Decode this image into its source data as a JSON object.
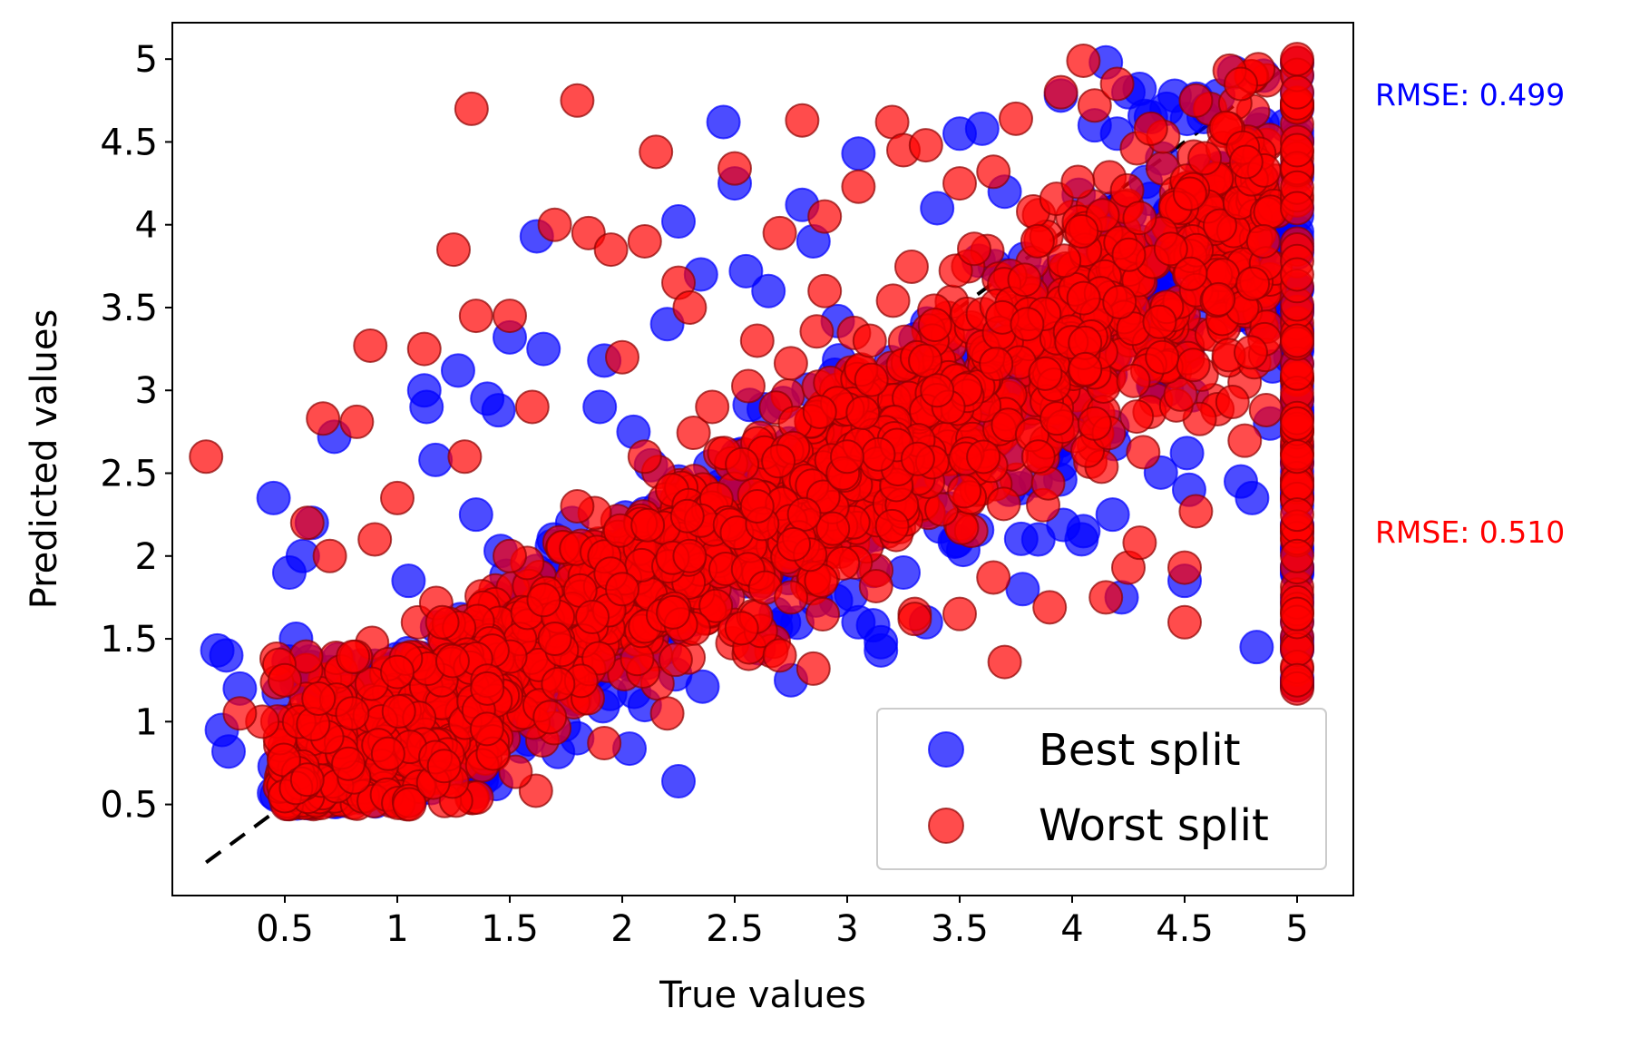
{
  "chart_data": {
    "type": "scatter",
    "xlabel": "True values",
    "ylabel": "Predicted values",
    "xlim": [
      0.0,
      5.25
    ],
    "ylim": [
      -0.05,
      5.22
    ],
    "xticks": [
      "0.5",
      "1",
      "1.5",
      "2",
      "2.5",
      "3",
      "3.5",
      "4",
      "4.5",
      "5"
    ],
    "yticks": [
      "0.5",
      "1",
      "1.5",
      "2",
      "2.5",
      "3",
      "3.5",
      "4",
      "4.5",
      "5"
    ],
    "grid": false,
    "legend_position": "lower right",
    "reference_line": {
      "style": "dashed",
      "color": "#000000",
      "x": [
        0.15,
        5.0
      ],
      "y": [
        0.15,
        5.0
      ]
    },
    "annotations": [
      {
        "text": "RMSE: 0.499",
        "color": "#0000ff"
      },
      {
        "text": "RMSE: 0.510",
        "color": "#ff0000"
      }
    ],
    "series": [
      {
        "name": "Best split",
        "color": "#0000ff",
        "points": [
          [
            0.2,
            1.43
          ],
          [
            0.24,
            1.4
          ],
          [
            0.22,
            0.95
          ],
          [
            0.25,
            0.82
          ],
          [
            0.3,
            1.2
          ],
          [
            0.45,
            2.35
          ],
          [
            0.52,
            1.9
          ],
          [
            0.58,
            2.0
          ],
          [
            0.62,
            2.2
          ],
          [
            0.72,
            2.72
          ],
          [
            0.55,
            1.5
          ],
          [
            0.6,
            1.3
          ],
          [
            1.12,
            3.0
          ],
          [
            1.13,
            2.9
          ],
          [
            1.17,
            2.58
          ],
          [
            1.27,
            3.12
          ],
          [
            1.4,
            2.95
          ],
          [
            1.45,
            2.88
          ],
          [
            1.5,
            3.32
          ],
          [
            1.62,
            3.93
          ],
          [
            1.65,
            3.25
          ],
          [
            1.92,
            3.18
          ],
          [
            2.05,
            2.75
          ],
          [
            2.25,
            4.02
          ],
          [
            2.35,
            3.7
          ],
          [
            2.45,
            4.62
          ],
          [
            2.5,
            4.25
          ],
          [
            2.55,
            3.72
          ],
          [
            2.8,
            4.12
          ],
          [
            2.75,
            1.25
          ],
          [
            2.95,
            1.73
          ],
          [
            3.05,
            1.6
          ],
          [
            3.05,
            4.43
          ],
          [
            3.15,
            1.43
          ],
          [
            3.15,
            1.48
          ],
          [
            3.25,
            1.9
          ],
          [
            3.35,
            1.6
          ],
          [
            3.5,
            4.55
          ],
          [
            3.6,
            4.58
          ],
          [
            3.72,
            2.4
          ],
          [
            3.78,
            1.8
          ],
          [
            3.85,
            2.1
          ],
          [
            3.95,
            4.78
          ],
          [
            4.05,
            2.15
          ],
          [
            4.1,
            4.6
          ],
          [
            4.15,
            4.98
          ],
          [
            4.18,
            2.25
          ],
          [
            4.2,
            4.55
          ],
          [
            4.22,
            1.75
          ],
          [
            4.25,
            4.8
          ],
          [
            4.3,
            4.82
          ],
          [
            4.35,
            4.65
          ],
          [
            4.42,
            4.7
          ],
          [
            4.52,
            2.4
          ],
          [
            4.55,
            3.8
          ],
          [
            4.6,
            4.18
          ],
          [
            4.65,
            4.78
          ],
          [
            4.72,
            4.92
          ],
          [
            4.75,
            2.45
          ],
          [
            4.8,
            2.35
          ],
          [
            4.82,
            1.45
          ],
          [
            4.85,
            4.9
          ],
          [
            4.9,
            3.5
          ],
          [
            4.95,
            4.6
          ],
          [
            4.92,
            4.0
          ],
          [
            4.97,
            3.2
          ],
          [
            2.25,
            0.64
          ],
          [
            1.8,
            0.9
          ],
          [
            1.55,
            0.85
          ],
          [
            2.1,
            1.1
          ],
          [
            4.5,
            1.85
          ],
          [
            3.95,
            2.55
          ],
          [
            4.08,
            3.0
          ],
          [
            3.9,
            3.3
          ],
          [
            4.3,
            3.9
          ],
          [
            4.45,
            3.2
          ],
          [
            4.7,
            3.5
          ],
          [
            4.88,
            2.8
          ],
          [
            5.0,
            2.4
          ],
          [
            5.0,
            1.9
          ],
          [
            5.0,
            1.45
          ],
          [
            5.0,
            2.9
          ],
          [
            5.0,
            4.9
          ],
          [
            5.0,
            3.5
          ],
          [
            4.6,
            4.1
          ],
          [
            4.4,
            4.4
          ],
          [
            3.7,
            4.2
          ],
          [
            3.4,
            4.1
          ],
          [
            2.85,
            3.9
          ],
          [
            2.65,
            3.6
          ],
          [
            2.2,
            3.4
          ],
          [
            1.9,
            2.9
          ],
          [
            1.35,
            2.25
          ],
          [
            1.05,
            1.85
          ],
          [
            0.7,
            1.3
          ],
          [
            0.5,
            1.0
          ]
        ]
      },
      {
        "name": "Worst split",
        "color": "#ff0000",
        "points": [
          [
            0.15,
            2.6
          ],
          [
            0.67,
            2.83
          ],
          [
            0.82,
            2.81
          ],
          [
            0.88,
            3.27
          ],
          [
            1.12,
            3.25
          ],
          [
            1.25,
            3.85
          ],
          [
            1.33,
            4.7
          ],
          [
            1.35,
            3.45
          ],
          [
            1.5,
            3.45
          ],
          [
            1.7,
            4.0
          ],
          [
            1.8,
            4.75
          ],
          [
            1.85,
            3.95
          ],
          [
            1.95,
            3.85
          ],
          [
            2.1,
            3.9
          ],
          [
            2.15,
            4.44
          ],
          [
            2.25,
            3.65
          ],
          [
            2.5,
            4.34
          ],
          [
            2.7,
            3.95
          ],
          [
            2.8,
            4.63
          ],
          [
            2.9,
            4.05
          ],
          [
            3.05,
            4.23
          ],
          [
            3.2,
            4.62
          ],
          [
            3.25,
            4.45
          ],
          [
            3.35,
            4.48
          ],
          [
            3.5,
            4.25
          ],
          [
            3.65,
            4.32
          ],
          [
            3.75,
            4.64
          ],
          [
            3.95,
            4.8
          ],
          [
            4.05,
            4.99
          ],
          [
            4.1,
            4.72
          ],
          [
            4.2,
            4.85
          ],
          [
            4.35,
            4.58
          ],
          [
            4.55,
            4.75
          ],
          [
            4.7,
            4.93
          ],
          [
            4.75,
            4.85
          ],
          [
            1.92,
            0.87
          ],
          [
            2.2,
            1.05
          ],
          [
            2.7,
            1.4
          ],
          [
            2.85,
            1.32
          ],
          [
            3.3,
            1.65
          ],
          [
            3.5,
            1.65
          ],
          [
            3.7,
            1.36
          ],
          [
            3.9,
            1.69
          ],
          [
            4.15,
            1.75
          ],
          [
            4.25,
            1.93
          ],
          [
            4.3,
            2.08
          ],
          [
            4.5,
            1.6
          ],
          [
            4.5,
            1.93
          ],
          [
            4.55,
            2.27
          ],
          [
            3.65,
            1.87
          ],
          [
            3.3,
            1.62
          ],
          [
            3.2,
            2.18
          ],
          [
            2.75,
            1.75
          ],
          [
            0.5,
            0.55
          ],
          [
            0.55,
            0.6
          ],
          [
            0.6,
            0.65
          ],
          [
            0.4,
            1.0
          ],
          [
            0.3,
            1.05
          ],
          [
            0.6,
            2.2
          ],
          [
            0.7,
            2.0
          ],
          [
            0.5,
            1.25
          ],
          [
            5.0,
            1.2
          ],
          [
            5.0,
            1.25
          ],
          [
            5.0,
            1.65
          ],
          [
            5.0,
            2.0
          ],
          [
            5.0,
            2.25
          ],
          [
            5.0,
            2.6
          ],
          [
            5.0,
            2.8
          ],
          [
            5.0,
            3.3
          ],
          [
            5.0,
            3.7
          ],
          [
            5.0,
            4.1
          ],
          [
            5.0,
            4.45
          ],
          [
            5.0,
            4.8
          ],
          [
            5.0,
            5.0
          ],
          [
            4.85,
            3.9
          ],
          [
            4.65,
            3.55
          ],
          [
            4.4,
            3.2
          ],
          [
            4.1,
            2.8
          ],
          [
            3.85,
            2.6
          ],
          [
            3.45,
            2.9
          ],
          [
            3.1,
            3.3
          ],
          [
            2.9,
            3.6
          ],
          [
            2.6,
            3.3
          ],
          [
            2.4,
            2.9
          ],
          [
            2.1,
            2.6
          ],
          [
            1.8,
            2.3
          ],
          [
            1.5,
            2.0
          ],
          [
            1.2,
            1.6
          ],
          [
            1.0,
            1.3
          ],
          [
            0.8,
            1.05
          ],
          [
            0.9,
            2.1
          ],
          [
            1.0,
            2.35
          ],
          [
            1.3,
            2.6
          ],
          [
            1.6,
            2.9
          ],
          [
            2.0,
            3.2
          ],
          [
            2.3,
            3.5
          ],
          [
            1.4,
            1.2
          ],
          [
            1.7,
            1.5
          ],
          [
            2.0,
            1.8
          ],
          [
            2.3,
            2.0
          ],
          [
            2.6,
            2.3
          ],
          [
            3.0,
            2.6
          ],
          [
            3.4,
            3.0
          ],
          [
            3.8,
            3.4
          ]
        ]
      }
    ]
  }
}
